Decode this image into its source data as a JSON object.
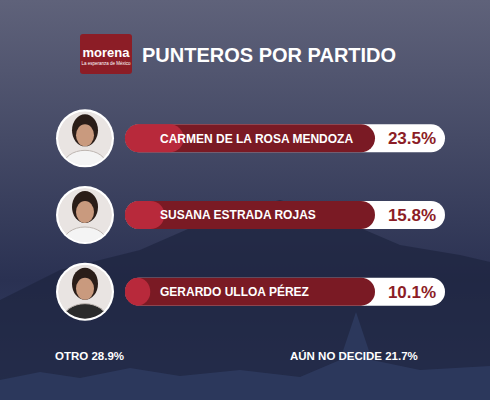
{
  "chart_data": {
    "type": "bar",
    "orientation": "horizontal",
    "logo": "morena",
    "logo_tagline": "La esperanza de México",
    "title": "PUNTEROS POR PARTIDO",
    "categories": [
      "CARMEN DE LA ROSA MENDOZA",
      "SUSANA ESTRADA ROJAS",
      "GERARDO ULLOA PÉREZ"
    ],
    "values": [
      23.5,
      15.8,
      10.1
    ],
    "value_labels": [
      "23.5%",
      "15.8%",
      "10.1%"
    ],
    "data_labels": true,
    "color": "#b8293b",
    "xlim": [
      0,
      100
    ],
    "tick_labels": false,
    "annotations": [
      "OTRO 28.9%",
      "AÚN NO DECIDE 21.7%"
    ]
  }
}
